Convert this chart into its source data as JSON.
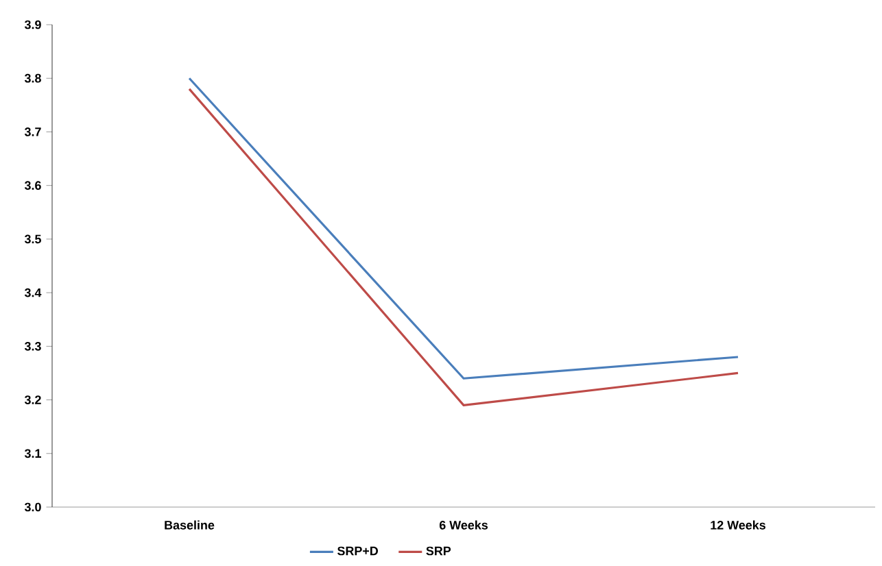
{
  "chart_data": {
    "type": "line",
    "categories": [
      "Baseline",
      "6 Weeks",
      "12 Weeks"
    ],
    "series": [
      {
        "name": "SRP+D",
        "color": "#4a7ebb",
        "values": [
          3.8,
          3.24,
          3.28
        ]
      },
      {
        "name": "SRP",
        "color": "#be4b48",
        "values": [
          3.78,
          3.19,
          3.25
        ]
      }
    ],
    "ylim": [
      3.0,
      3.9
    ],
    "yticks": [
      {
        "value": 3,
        "label": "3.0"
      },
      3.1,
      3.2,
      3.3,
      3.4,
      3.5,
      3.6,
      3.7,
      3.8,
      3.9
    ],
    "legend": "bottom",
    "grid": false,
    "marker": "none",
    "line_style": "solid"
  }
}
